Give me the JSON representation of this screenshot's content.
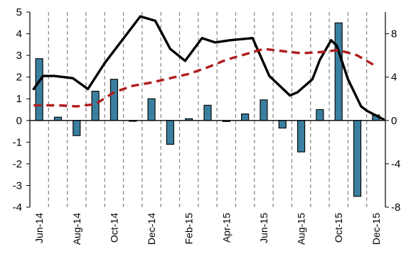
{
  "chart_data": {
    "type": "bar",
    "categories": [
      "Jun-14",
      "Jul-14",
      "Aug-14",
      "Sep-14",
      "Oct-14",
      "Nov-14",
      "Dec-14",
      "Jan-15",
      "Feb-15",
      "Mar-15",
      "Apr-15",
      "May-15",
      "Jun-15",
      "Jul-15",
      "Aug-15",
      "Sep-15",
      "Oct-15",
      "Nov-15",
      "Dec-15"
    ],
    "x_tick_labels": [
      "Jun-14",
      "Aug-14",
      "Oct-14",
      "Dec-14",
      "Feb-15",
      "Apr-15",
      "Jun-15",
      "Aug-15",
      "Oct-15",
      "Dec-15"
    ],
    "left_axis": {
      "ylim": [
        -4,
        5
      ],
      "ticks": [
        -4,
        -3,
        -2,
        -1,
        0,
        1,
        2,
        3,
        4,
        5
      ]
    },
    "right_axis": {
      "ylim": [
        -8,
        10
      ],
      "ticks": [
        -8,
        -4,
        0,
        4,
        8
      ]
    },
    "grid": {
      "vertical": "dashed",
      "horizontal": false
    },
    "series": [
      {
        "type": "bar",
        "axis": "left",
        "color": "#3a7fa0",
        "values": [
          2.85,
          0.15,
          -0.7,
          1.35,
          1.9,
          0.0,
          1.0,
          -1.1,
          0.08,
          0.7,
          -0.05,
          0.3,
          0.95,
          -0.35,
          -1.45,
          0.5,
          4.5,
          -3.5,
          0.25
        ]
      },
      {
        "type": "line",
        "axis": "right",
        "style": "solid",
        "color": "#000000",
        "x": [
          -0.3,
          0.2,
          0.8,
          1.8,
          2.6,
          3.5,
          5.4,
          6.2,
          7.0,
          7.8,
          8.7,
          9.4,
          10.2,
          11.4,
          12.3,
          13.4,
          13.8,
          14.6,
          15.0,
          15.6,
          15.9,
          16.5,
          17.2,
          17.5,
          18.4
        ],
        "values": [
          2.9,
          4.1,
          4.1,
          3.9,
          2.9,
          5.3,
          9.6,
          9.2,
          6.6,
          5.5,
          7.6,
          7.2,
          7.4,
          7.6,
          4.1,
          2.3,
          2.6,
          3.8,
          5.6,
          7.4,
          6.9,
          3.8,
          1.3,
          0.9,
          0.1
        ]
      },
      {
        "type": "line",
        "axis": "right",
        "style": "dashed",
        "color": "#b01c1c",
        "x": [
          -0.3,
          0.5,
          1.0,
          2.0,
          3.0,
          4.0,
          5.0,
          6.0,
          7.0,
          8.0,
          9.0,
          10.0,
          11.0,
          12.0,
          13.0,
          14.0,
          15.0,
          16.0,
          17.0,
          18.0
        ],
        "values": [
          1.4,
          1.4,
          1.4,
          1.3,
          1.5,
          2.6,
          3.2,
          3.5,
          3.9,
          4.3,
          4.9,
          5.6,
          6.1,
          6.6,
          6.4,
          6.2,
          6.3,
          6.5,
          6.0,
          5.0
        ]
      }
    ]
  }
}
